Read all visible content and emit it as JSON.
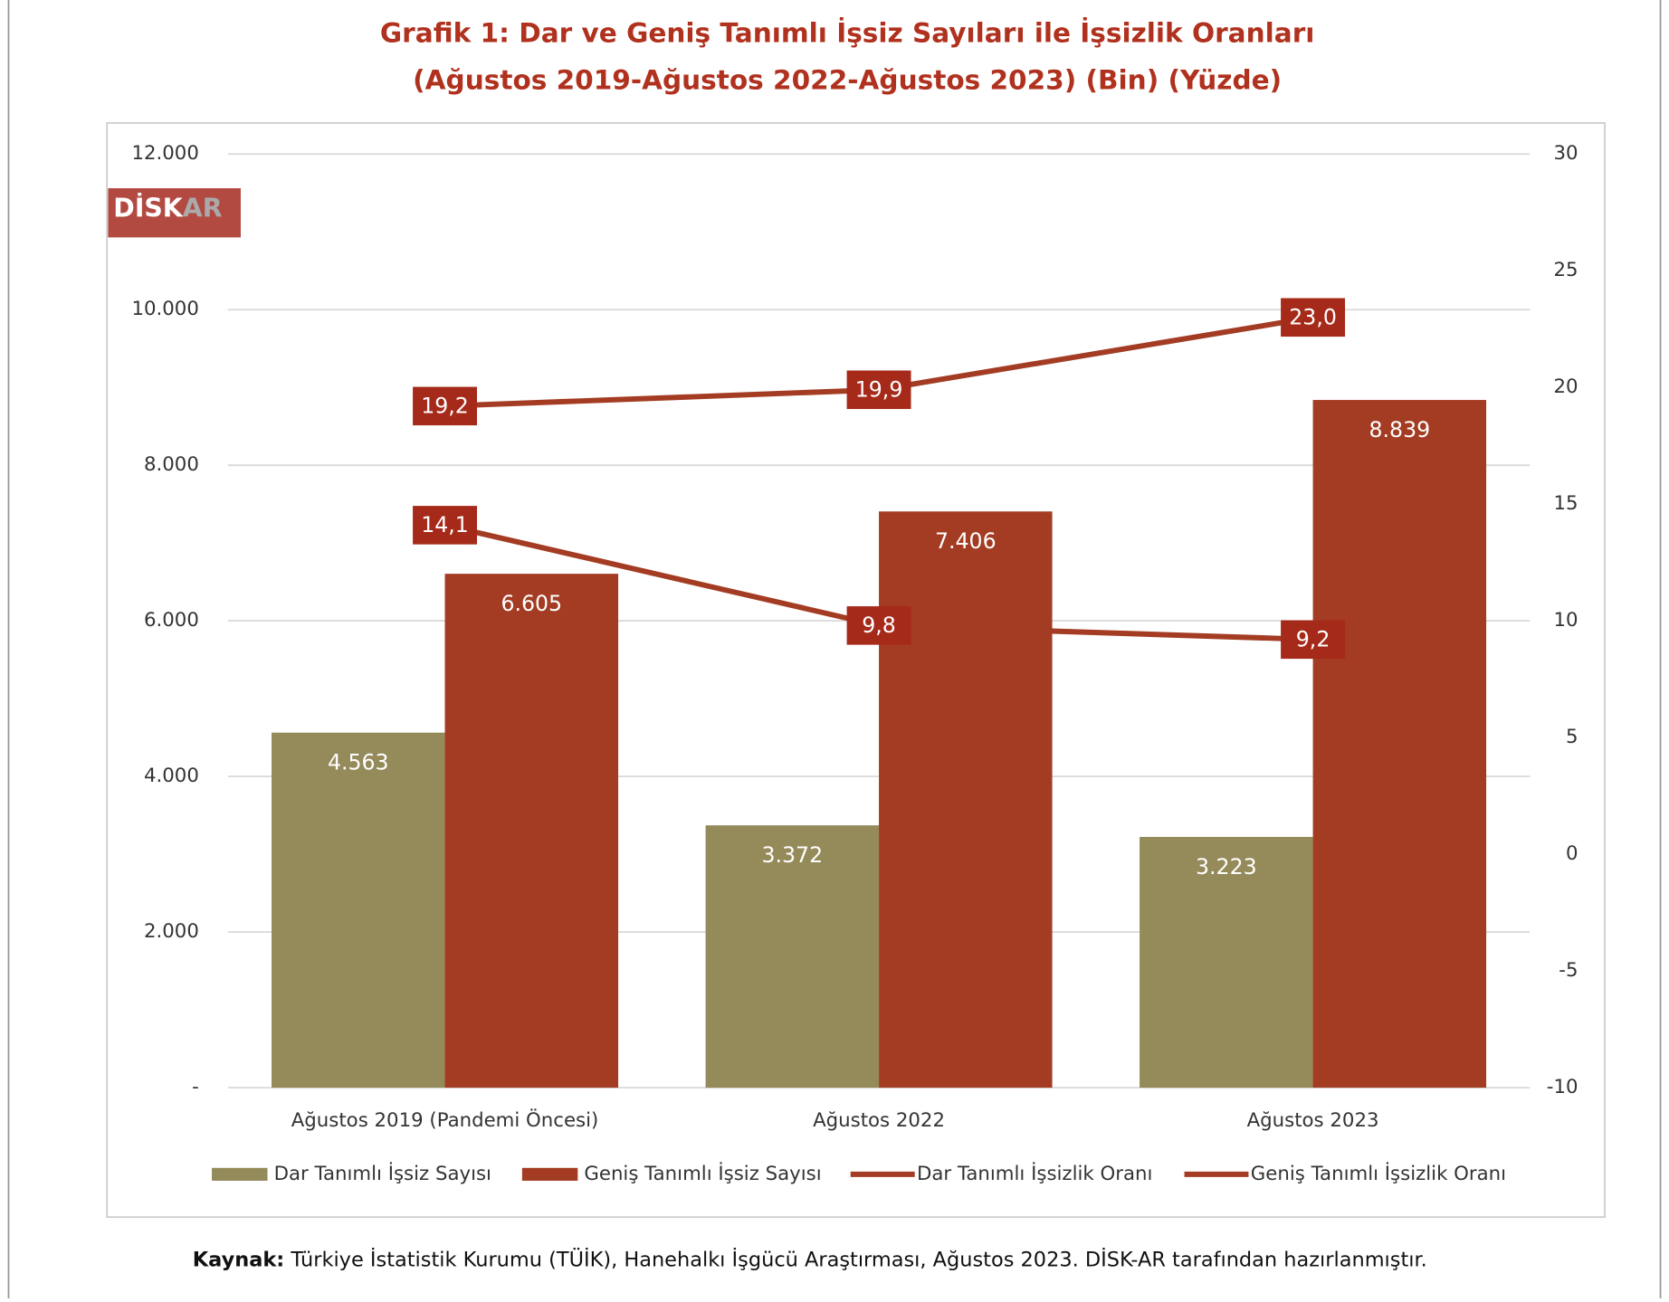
{
  "chart_data": {
    "type": "bar",
    "title": "Grafik 1: Dar ve Geniş Tanımlı İşsiz Sayıları ile İşsizlik Oranları",
    "subtitle": "(Ağustos 2019-Ağustos 2022-Ağustos 2023) (Bin) (Yüzde)",
    "logo": [
      "DİSK",
      "AR"
    ],
    "categories": [
      "Ağustos 2019 (Pandemi Öncesi)",
      "Ağustos 2022",
      "Ağustos 2023"
    ],
    "series": [
      {
        "name": "Dar Tanımlı İşsiz Sayısı",
        "type": "bar",
        "color": "#948a5a",
        "values": [
          4563,
          3372,
          3223
        ],
        "value_labels": [
          "4.563",
          "3.372",
          "3.223"
        ]
      },
      {
        "name": "Geniş Tanımlı İşsiz Sayısı",
        "type": "bar",
        "color": "#a33c22",
        "values": [
          6605,
          7406,
          8839
        ],
        "value_labels": [
          "6.605",
          "7.406",
          "8.839"
        ]
      },
      {
        "name": "Dar Tanımlı İşsizlik Oranı",
        "type": "line",
        "axis": "y2",
        "color": "#a33c22",
        "values": [
          14.1,
          9.8,
          9.2
        ],
        "value_labels": [
          "14,1",
          "9,8",
          "9,2"
        ]
      },
      {
        "name": "Geniş Tanımlı İşsizlik Oranı",
        "type": "line",
        "axis": "y2",
        "color": "#a33c22",
        "values": [
          19.2,
          19.9,
          23.0
        ],
        "value_labels": [
          "19,2",
          "19,9",
          "23,0"
        ]
      }
    ],
    "ylim": [
      0,
      12000
    ],
    "yticks": [
      {
        "value": 0,
        "label": "-"
      },
      {
        "value": 2000,
        "label": "2.000"
      },
      {
        "value": 4000,
        "label": "4.000"
      },
      {
        "value": 6000,
        "label": "6.000"
      },
      {
        "value": 8000,
        "label": "8.000"
      },
      {
        "value": 10000,
        "label": "10.000"
      },
      {
        "value": 12000,
        "label": "12.000"
      }
    ],
    "y2lim": [
      -10,
      30
    ],
    "y2ticks": [
      -10,
      -5,
      0,
      5,
      10,
      15,
      20,
      25,
      30
    ],
    "grid": true,
    "legend": "bottom",
    "source": {
      "label": "Kaynak:",
      "text": " Türkiye İstatistik Kurumu (TÜİK), Hanehalkı İşgücü Araştırması, Ağustos 2023. DİSK-AR tarafından hazırlanmıştır."
    }
  }
}
